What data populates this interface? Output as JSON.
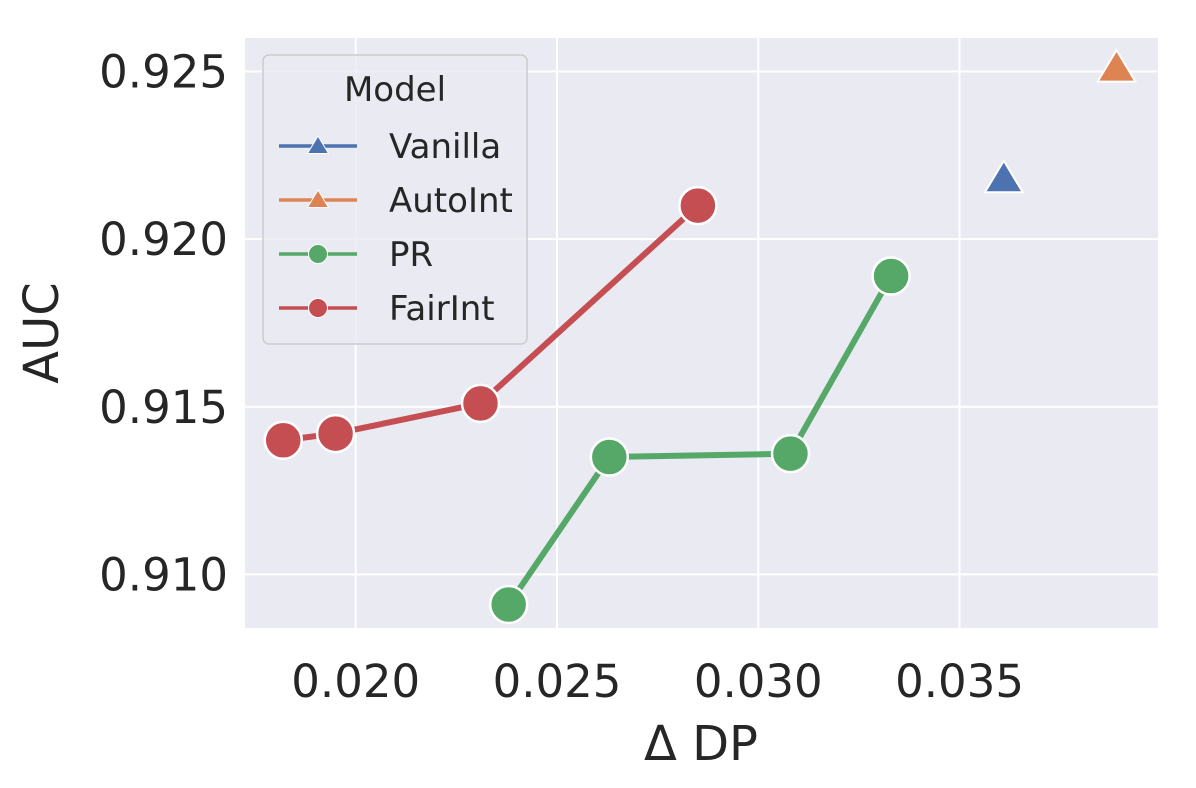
{
  "chart_data": {
    "type": "line",
    "title": "",
    "xlabel": "Δ DP",
    "ylabel": "AUC",
    "xlim": [
      0.01725,
      0.03993
    ],
    "ylim": [
      0.9084,
      0.926
    ],
    "xticks": [
      0.02,
      0.025,
      0.03,
      0.035
    ],
    "xtick_labels": [
      "0.020",
      "0.025",
      "0.030",
      "0.035"
    ],
    "yticks": [
      0.91,
      0.915,
      0.92,
      0.925
    ],
    "ytick_labels": [
      "0.910",
      "0.915",
      "0.920",
      "0.925"
    ],
    "grid": true,
    "legend": {
      "title": "Model",
      "location": "upper-left"
    },
    "series": [
      {
        "name": "Vanilla",
        "marker": "triangle",
        "color": "#4c72b0",
        "x": [
          0.0361
        ],
        "y": [
          0.9218
        ]
      },
      {
        "name": "AutoInt",
        "marker": "triangle",
        "color": "#dd8452",
        "x": [
          0.0389
        ],
        "y": [
          0.9251
        ]
      },
      {
        "name": "PR",
        "marker": "circle",
        "color": "#55a868",
        "x": [
          0.0238,
          0.0263,
          0.0308,
          0.0333
        ],
        "y": [
          0.9091,
          0.9135,
          0.9136,
          0.9189
        ]
      },
      {
        "name": "FairInt",
        "marker": "circle",
        "color": "#c44e52",
        "x": [
          0.0182,
          0.0195,
          0.0231,
          0.0285
        ],
        "y": [
          0.914,
          0.9142,
          0.9151,
          0.921
        ]
      }
    ]
  }
}
